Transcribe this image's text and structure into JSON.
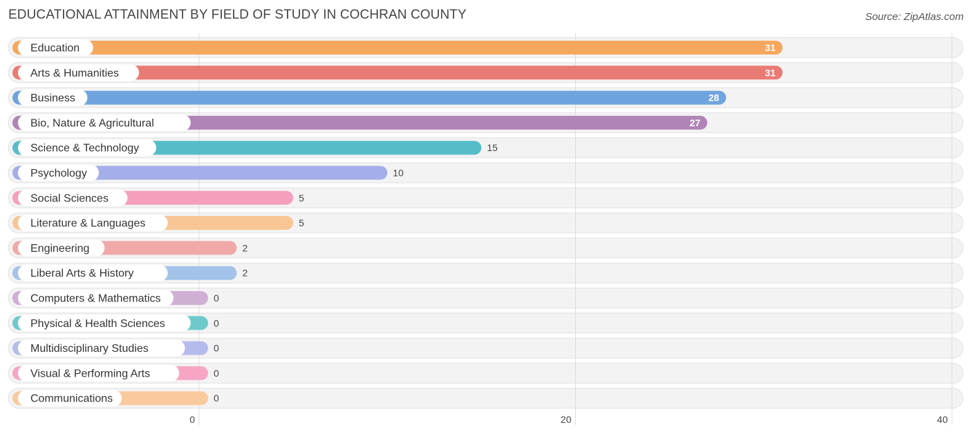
{
  "header": {
    "title": "EDUCATIONAL ATTAINMENT BY FIELD OF STUDY IN COCHRAN COUNTY",
    "source": "Source: ZipAtlas.com"
  },
  "chart_data": {
    "type": "bar",
    "orientation": "horizontal",
    "title": "EDUCATIONAL ATTAINMENT BY FIELD OF STUDY IN COCHRAN COUNTY",
    "categories": [
      "Education",
      "Arts & Humanities",
      "Business",
      "Bio, Nature & Agricultural",
      "Science & Technology",
      "Psychology",
      "Social Sciences",
      "Literature & Languages",
      "Engineering",
      "Liberal Arts & History",
      "Computers & Mathematics",
      "Physical & Health Sciences",
      "Multidisciplinary Studies",
      "Visual & Performing Arts",
      "Communications"
    ],
    "values": [
      31,
      31,
      28,
      27,
      15,
      10,
      5,
      5,
      2,
      2,
      0,
      0,
      0,
      0,
      0
    ],
    "colors": [
      "#f6a75e",
      "#ea7a74",
      "#6fa4de",
      "#b184b8",
      "#56bcc9",
      "#a4aee8",
      "#f59fbd",
      "#f8c595",
      "#f0a9a8",
      "#a3c3ea",
      "#cfb0d4",
      "#6ecaca",
      "#b5bcec",
      "#f6a6c4",
      "#f9ca9d"
    ],
    "xlim": [
      0,
      40
    ],
    "xticks": [
      0,
      20,
      40
    ],
    "grid": true,
    "legend": "none"
  }
}
